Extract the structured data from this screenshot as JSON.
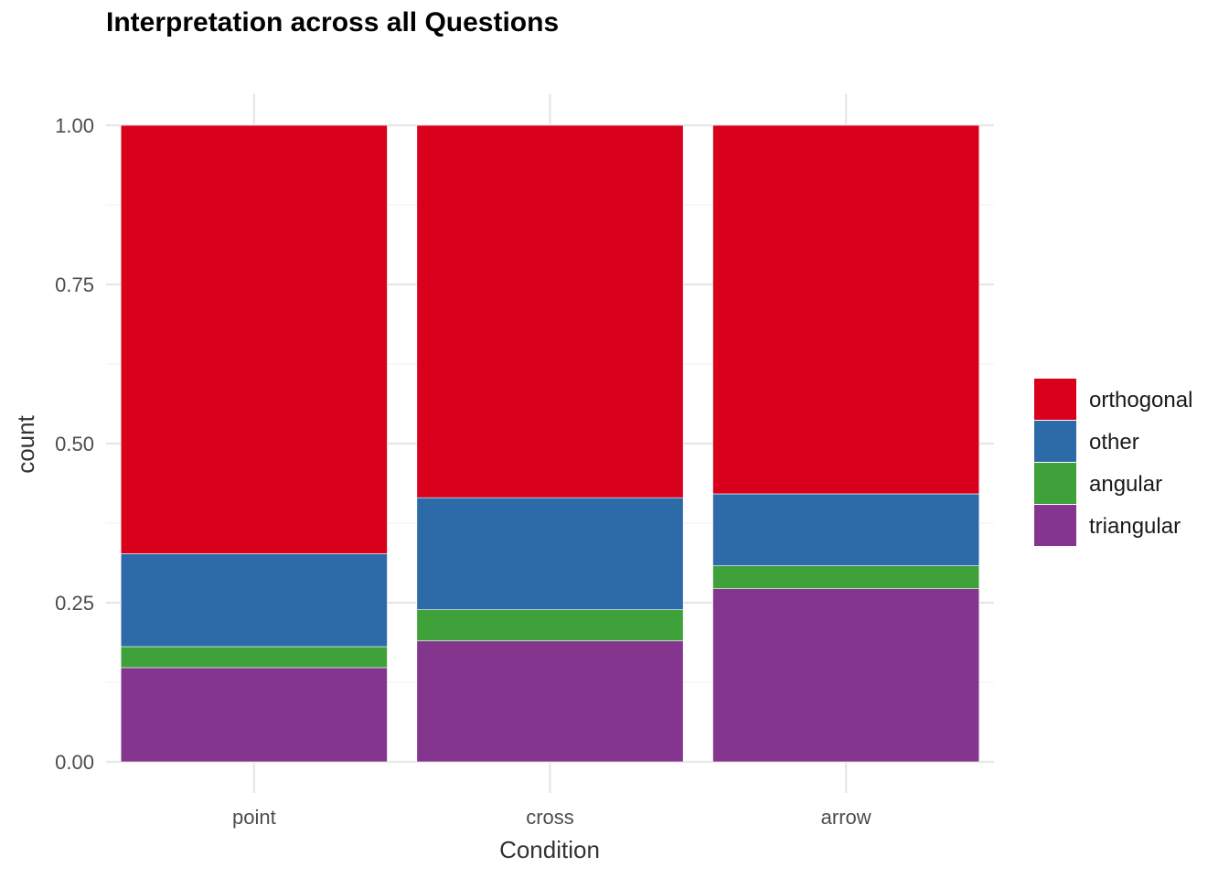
{
  "chart_data": {
    "type": "bar",
    "stacked": true,
    "title": "Interpretation across all Questions",
    "xlabel": "Condition",
    "ylabel": "count",
    "ylim": [
      0,
      1
    ],
    "yticks": [
      "0.00",
      "0.25",
      "0.50",
      "0.75",
      "1.00"
    ],
    "ytick_values": [
      0,
      0.25,
      0.5,
      0.75,
      1.0
    ],
    "categories": [
      "point",
      "cross",
      "arrow"
    ],
    "series": [
      {
        "name": "triangular",
        "color": "#84368F",
        "values": [
          0.148,
          0.19,
          0.272
        ]
      },
      {
        "name": "angular",
        "color": "#3EA13A",
        "values": [
          0.033,
          0.049,
          0.036
        ]
      },
      {
        "name": "other",
        "color": "#2D6AA8",
        "values": [
          0.146,
          0.176,
          0.113
        ]
      },
      {
        "name": "orthogonal",
        "color": "#D8001A",
        "values": [
          0.673,
          0.585,
          0.579
        ]
      }
    ],
    "legend_order": [
      "orthogonal",
      "other",
      "angular",
      "triangular"
    ],
    "legend_position": "right",
    "grid": true
  }
}
